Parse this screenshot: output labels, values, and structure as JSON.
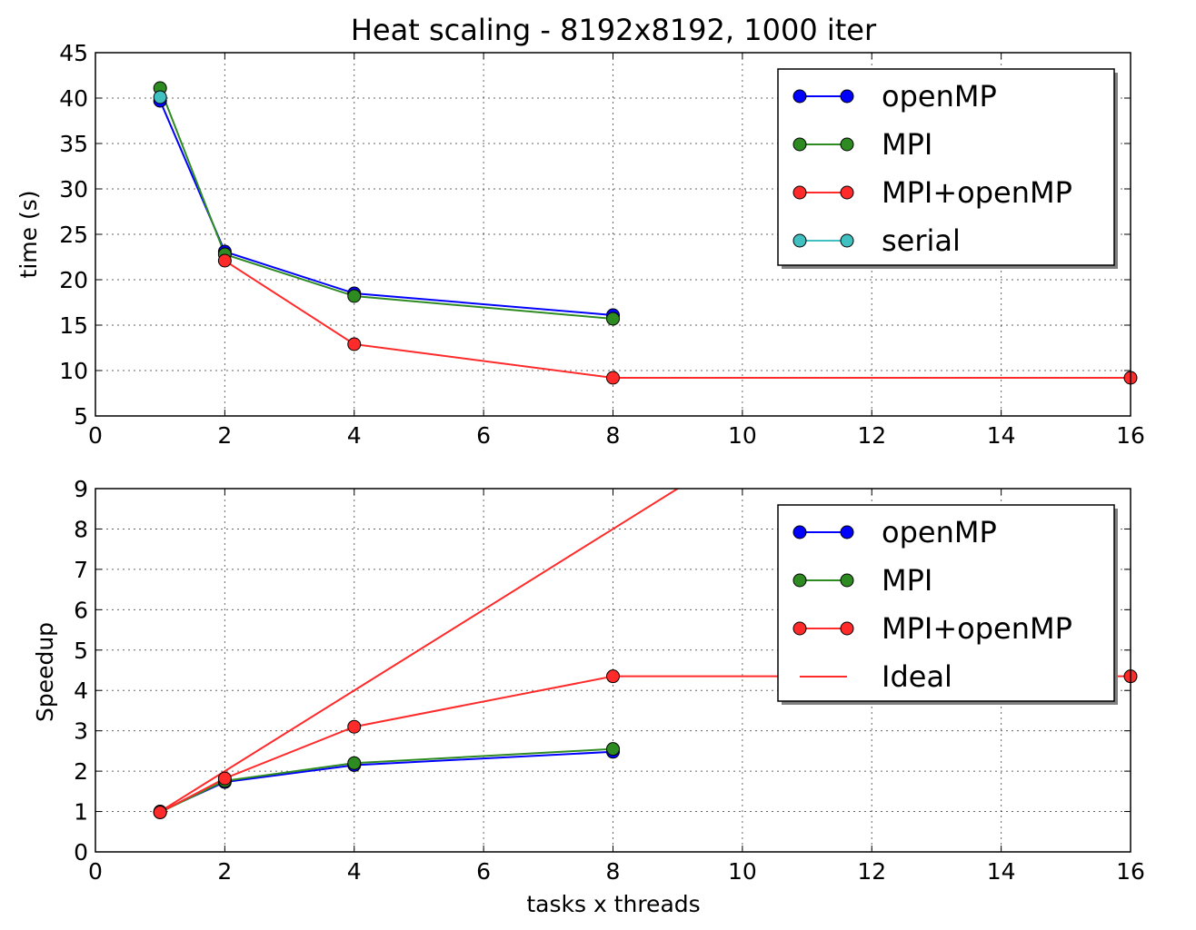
{
  "chart_data": [
    {
      "type": "line",
      "title": "Heat  scaling - 8192x8192,  1000 iter",
      "xlabel": "",
      "ylabel": "time (s)",
      "xlim": [
        0,
        16
      ],
      "ylim": [
        5,
        45
      ],
      "xticks": [
        0,
        2,
        4,
        6,
        8,
        10,
        12,
        14,
        16
      ],
      "yticks": [
        5,
        10,
        15,
        20,
        25,
        30,
        35,
        40,
        45
      ],
      "grid": true,
      "legend_position": "top-right",
      "series": [
        {
          "name": "openMP",
          "color": "#0000ff",
          "marker": "circle",
          "x": [
            1,
            2,
            4,
            8
          ],
          "y": [
            39.7,
            23.1,
            18.5,
            16.1
          ]
        },
        {
          "name": "MPI",
          "color": "#2e8b22",
          "marker": "circle",
          "x": [
            1,
            2,
            4,
            8
          ],
          "y": [
            41.1,
            22.8,
            18.2,
            15.7
          ]
        },
        {
          "name": "MPI+openMP",
          "color": "#ff2a2a",
          "marker": "circle",
          "x": [
            2,
            4,
            8,
            16
          ],
          "y": [
            22.1,
            12.9,
            9.2,
            9.2
          ]
        },
        {
          "name": "serial",
          "color": "#40c0c0",
          "marker": "circle",
          "x": [
            1
          ],
          "y": [
            40.1
          ]
        }
      ]
    },
    {
      "type": "line",
      "title": "",
      "xlabel": "tasks x threads",
      "ylabel": "Speedup",
      "xlim": [
        0,
        16
      ],
      "ylim": [
        0,
        9
      ],
      "xticks": [
        0,
        2,
        4,
        6,
        8,
        10,
        12,
        14,
        16
      ],
      "yticks": [
        0,
        1,
        2,
        3,
        4,
        5,
        6,
        7,
        8,
        9
      ],
      "grid": true,
      "legend_position": "top-right",
      "series": [
        {
          "name": "openMP",
          "color": "#0000ff",
          "marker": "circle",
          "x": [
            1,
            2,
            4,
            8
          ],
          "y": [
            1.0,
            1.73,
            2.15,
            2.48
          ]
        },
        {
          "name": "MPI",
          "color": "#2e8b22",
          "marker": "circle",
          "x": [
            1,
            2,
            4,
            8
          ],
          "y": [
            0.98,
            1.76,
            2.2,
            2.55
          ]
        },
        {
          "name": "MPI+openMP",
          "color": "#ff2a2a",
          "marker": "circle",
          "x": [
            1,
            2,
            4,
            8,
            16
          ],
          "y": [
            0.98,
            1.82,
            3.1,
            4.35,
            4.35
          ]
        },
        {
          "name": "Ideal",
          "color": "#ff2a2a",
          "marker": "none",
          "x": [
            1,
            2,
            4,
            8,
            16
          ],
          "y": [
            1,
            2,
            4,
            8,
            16
          ]
        }
      ]
    }
  ]
}
